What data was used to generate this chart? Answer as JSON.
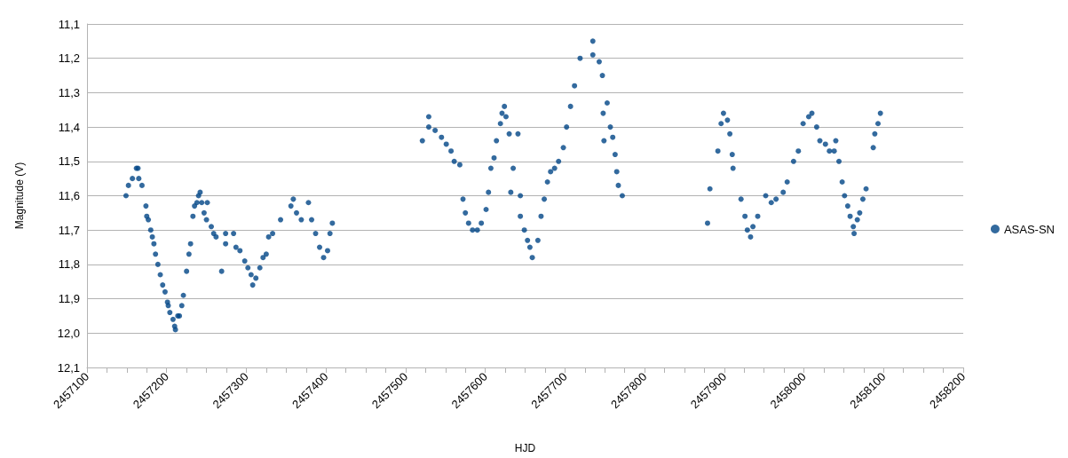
{
  "chart_data": {
    "type": "scatter",
    "xlabel": "HJD",
    "ylabel": "Magnitude (V)",
    "xlim": [
      2457100,
      2458200
    ],
    "xticks": [
      2457100,
      {
        "value": 2457125,
        "label": null
      },
      {
        "value": 2457150,
        "label": null
      },
      {
        "value": 2457175,
        "label": null
      },
      2457200,
      {
        "value": 2457225,
        "label": null
      },
      {
        "value": 2457250,
        "label": null
      },
      {
        "value": 2457275,
        "label": null
      },
      2457300,
      {
        "value": 2457325,
        "label": null
      },
      {
        "value": 2457350,
        "label": null
      },
      {
        "value": 2457375,
        "label": null
      },
      2457400,
      {
        "value": 2457425,
        "label": null
      },
      {
        "value": 2457450,
        "label": null
      },
      {
        "value": 2457475,
        "label": null
      },
      2457500,
      {
        "value": 2457525,
        "label": null
      },
      {
        "value": 2457550,
        "label": null
      },
      {
        "value": 2457575,
        "label": null
      },
      2457600,
      {
        "value": 2457625,
        "label": null
      },
      {
        "value": 2457650,
        "label": null
      },
      {
        "value": 2457675,
        "label": null
      },
      2457700,
      {
        "value": 2457725,
        "label": null
      },
      {
        "value": 2457750,
        "label": null
      },
      {
        "value": 2457775,
        "label": null
      },
      2457800,
      {
        "value": 2457825,
        "label": null
      },
      {
        "value": 2457850,
        "label": null
      },
      {
        "value": 2457875,
        "label": null
      },
      2457900,
      {
        "value": 2457925,
        "label": null
      },
      {
        "value": 2457950,
        "label": null
      },
      {
        "value": 2457975,
        "label": null
      },
      2458000,
      {
        "value": 2458025,
        "label": null
      },
      {
        "value": 2458050,
        "label": null
      },
      {
        "value": 2458075,
        "label": null
      },
      2458100,
      {
        "value": 2458125,
        "label": null
      },
      {
        "value": 2458150,
        "label": null
      },
      {
        "value": 2458175,
        "label": null
      },
      2458200
    ],
    "ylim": [
      12.1,
      11.1
    ],
    "yticks": [
      {
        "value": 11.1,
        "label": "11,1"
      },
      {
        "value": 11.2,
        "label": "11,2"
      },
      {
        "value": 11.3,
        "label": "11,3"
      },
      {
        "value": 11.4,
        "label": "11,4"
      },
      {
        "value": 11.5,
        "label": "11,5"
      },
      {
        "value": 11.6,
        "label": "11,6"
      },
      {
        "value": 11.7,
        "label": "11,7"
      },
      {
        "value": 11.8,
        "label": "11,8"
      },
      {
        "value": 11.9,
        "label": "11,9"
      },
      {
        "value": 12.0,
        "label": "12,0"
      },
      {
        "value": 12.1,
        "label": "12,1"
      }
    ],
    "grid": "y",
    "legend": "right",
    "marker": "circle",
    "series": [
      {
        "name": "ASAS-SN",
        "color": "#004586",
        "x": [
          2457149,
          2457152,
          2457157,
          2457162,
          2457164,
          2457165,
          2457169,
          2457174,
          2457175,
          2457177,
          2457180,
          2457182,
          2457184,
          2457186,
          2457189,
          2457192,
          2457195,
          2457198,
          2457201,
          2457202,
          2457204,
          2457208,
          2457210,
          2457211,
          2457214,
          2457216,
          2457219,
          2457221,
          2457225,
          2457228,
          2457230,
          2457233,
          2457235,
          2457238,
          2457240,
          2457242,
          2457244,
          2457247,
          2457250,
          2457251,
          2457256,
          2457259,
          2457262,
          2457269,
          2457274,
          2457274,
          2457284,
          2457287,
          2457292,
          2457298,
          2457302,
          2457306,
          2457308,
          2457312,
          2457317,
          2457321,
          2457325,
          2457328,
          2457333,
          2457343,
          2457356,
          2457359,
          2457363,
          2457369,
          2457378,
          2457382,
          2457387,
          2457392,
          2457397,
          2457402,
          2457405,
          2457408,
          2457521,
          2457529,
          2457529,
          2457537,
          2457545,
          2457551,
          2457557,
          2457561,
          2457568,
          2457572,
          2457575,
          2457579,
          2457584,
          2457590,
          2457595,
          2457601,
          2457604,
          2457607,
          2457611,
          2457614,
          2457619,
          2457621,
          2457624,
          2457626,
          2457630,
          2457632,
          2457635,
          2457641,
          2457644,
          2457644,
          2457649,
          2457653,
          2457656,
          2457659,
          2457666,
          2457670,
          2457674,
          2457678,
          2457682,
          2457687,
          2457692,
          2457698,
          2457702,
          2457707,
          2457712,
          2457719,
          2457735,
          2457735,
          2457743,
          2457747,
          2457748,
          2457749,
          2457753,
          2457757,
          2457760,
          2457763,
          2457765,
          2457767,
          2457772,
          2457879,
          2457882,
          2457892,
          2457896,
          2457899,
          2457904,
          2457907,
          2457910,
          2457911,
          2457921,
          2457926,
          2457929,
          2457933,
          2457936,
          2457942,
          2457952,
          2457959,
          2457965,
          2457974,
          2457979,
          2457987,
          2457993,
          2457999,
          2458006,
          2458010,
          2458016,
          2458020,
          2458027,
          2458032,
          2458038,
          2458040,
          2458044,
          2458048,
          2458051,
          2458055,
          2458058,
          2458062,
          2458063,
          2458067,
          2458070,
          2458074,
          2458078,
          2458087,
          2458089,
          2458093,
          2458096
        ],
        "values": [
          11.6,
          11.57,
          11.55,
          11.52,
          11.52,
          11.55,
          11.57,
          11.63,
          11.66,
          11.67,
          11.7,
          11.72,
          11.74,
          11.77,
          11.8,
          11.83,
          11.86,
          11.88,
          11.91,
          11.92,
          11.94,
          11.96,
          11.98,
          11.99,
          11.95,
          11.95,
          11.92,
          11.89,
          11.82,
          11.77,
          11.74,
          11.66,
          11.63,
          11.62,
          11.6,
          11.59,
          11.62,
          11.65,
          11.67,
          11.62,
          11.69,
          11.71,
          11.72,
          11.82,
          11.71,
          11.74,
          11.71,
          11.75,
          11.76,
          11.79,
          11.81,
          11.83,
          11.86,
          11.84,
          11.81,
          11.78,
          11.77,
          11.72,
          11.71,
          11.67,
          11.63,
          11.61,
          11.65,
          11.67,
          11.62,
          11.67,
          11.71,
          11.75,
          11.78,
          11.76,
          11.71,
          11.68,
          11.44,
          11.37,
          11.4,
          11.41,
          11.43,
          11.45,
          11.47,
          11.5,
          11.51,
          11.61,
          11.65,
          11.68,
          11.7,
          11.7,
          11.68,
          11.64,
          11.59,
          11.52,
          11.49,
          11.44,
          11.39,
          11.36,
          11.34,
          11.37,
          11.42,
          11.59,
          11.52,
          11.42,
          11.6,
          11.66,
          11.7,
          11.73,
          11.75,
          11.78,
          11.73,
          11.66,
          11.61,
          11.56,
          11.53,
          11.52,
          11.5,
          11.46,
          11.4,
          11.34,
          11.28,
          11.2,
          11.15,
          11.19,
          11.21,
          11.25,
          11.36,
          11.44,
          11.33,
          11.4,
          11.43,
          11.48,
          11.53,
          11.57,
          11.6,
          11.68,
          11.58,
          11.47,
          11.39,
          11.36,
          11.38,
          11.42,
          11.48,
          11.52,
          11.61,
          11.66,
          11.7,
          11.72,
          11.69,
          11.66,
          11.6,
          11.62,
          11.61,
          11.59,
          11.56,
          11.5,
          11.47,
          11.39,
          11.37,
          11.36,
          11.4,
          11.44,
          11.45,
          11.47,
          11.47,
          11.44,
          11.5,
          11.56,
          11.6,
          11.63,
          11.66,
          11.69,
          11.71,
          11.67,
          11.65,
          11.61,
          11.58,
          11.46,
          11.42,
          11.39,
          11.36
        ]
      }
    ]
  }
}
